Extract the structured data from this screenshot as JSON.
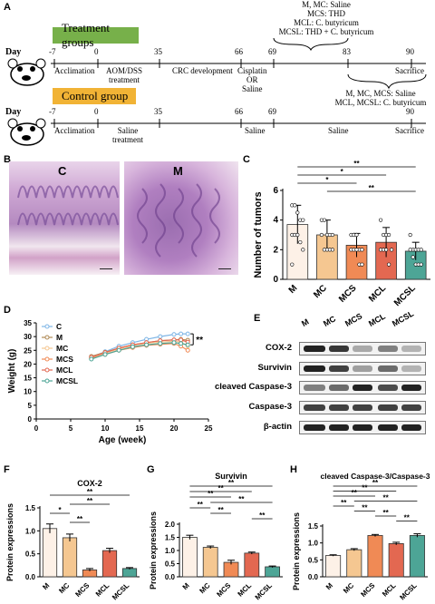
{
  "panelA": {
    "label": "A",
    "treatment_label": "Treatment groups",
    "control_label": "Control group",
    "day_label": "Day",
    "days": [
      "-7",
      "0",
      "35",
      "66",
      "69",
      "83",
      "90"
    ],
    "control_days": [
      "-7",
      "0",
      "35",
      "66",
      "69",
      "90"
    ],
    "treat_phases": {
      "accl": "Acclimation",
      "aom": "AOM/DSS",
      "aom2": "treatment",
      "crc": "CRC development",
      "cis": "Cisplatin",
      "cis_or": "OR",
      "cis_saline": "Saline",
      "sac": "Sacrifice"
    },
    "ctrl_phases": {
      "accl": "Acclimation",
      "sal": "Saline",
      "sal2": "treatment",
      "s66": "Saline",
      "s83": "Saline",
      "sac": "Sacrifice"
    },
    "top_note": [
      "M, MC: Saline",
      "MCS: THD",
      "MCL: C. butyricum",
      "MCSL: THD + C. butyricum"
    ],
    "bottom_note": [
      "M, MC, MCS: Saline",
      "MCL, MCSL: C. butyricum"
    ],
    "treat_color": "#77b04a",
    "ctrl_color": "#f1b335"
  },
  "panelB": {
    "label": "B",
    "img_c": "C",
    "img_m": "M"
  },
  "panelC": {
    "label": "C"
  },
  "panelD": {
    "label": "D"
  },
  "panelE": {
    "label": "E",
    "lanes": [
      "M",
      "MC",
      "MCS",
      "MCL",
      "MCSL"
    ],
    "rows": [
      "COX-2",
      "Survivin",
      "cleaved Caspase-3",
      "Caspase-3",
      "β-actin"
    ]
  },
  "panelF": {
    "label": "F"
  },
  "panelG": {
    "label": "G"
  },
  "panelH": {
    "label": "H"
  },
  "colors": {
    "M": "#fdf1e7",
    "MC": "#f5c791",
    "MCS": "#f08a55",
    "MCL": "#e36851",
    "MCSL": "#4da596"
  },
  "chart_data": [
    {
      "id": "C",
      "type": "bar",
      "title": "",
      "ylabel": "Number of tumors",
      "xlabel": "",
      "categories": [
        "M",
        "MC",
        "MCS",
        "MCL",
        "MCSL"
      ],
      "values": [
        3.7,
        3.0,
        2.3,
        2.5,
        1.9
      ],
      "errors": [
        1.3,
        1.0,
        0.8,
        1.0,
        0.6
      ],
      "points": [
        [
          5,
          5,
          4.5,
          4,
          4,
          3,
          3,
          3,
          2.5,
          2,
          1
        ],
        [
          4,
          4,
          3,
          3,
          3,
          3,
          2,
          2,
          2,
          2
        ],
        [
          3,
          3,
          3,
          2,
          2,
          2,
          2,
          2,
          1,
          1
        ],
        [
          4,
          3,
          3,
          3,
          2,
          2,
          2,
          2,
          1
        ],
        [
          3,
          2,
          2,
          2,
          2,
          2,
          1.5,
          1,
          1,
          1
        ]
      ],
      "ylim": [
        0,
        6
      ],
      "yticks": [
        "0",
        "2",
        "4",
        "6"
      ],
      "sig": [
        {
          "from": 0,
          "to": 4,
          "label": "**"
        },
        {
          "from": 0,
          "to": 3,
          "label": "*"
        },
        {
          "from": 0,
          "to": 2,
          "label": "*"
        },
        {
          "from": 1,
          "to": 4,
          "label": "**"
        }
      ]
    },
    {
      "id": "D",
      "type": "line",
      "title": "",
      "xlabel": "Age (week)",
      "ylabel": "Weight (g)",
      "x": [
        8,
        10,
        12,
        14,
        16,
        18,
        20,
        21,
        22
      ],
      "xlim": [
        0,
        25
      ],
      "ylim": [
        0,
        35
      ],
      "xticks": [
        "0",
        "5",
        "10",
        "15",
        "20",
        "25"
      ],
      "yticks": [
        "0",
        "5",
        "10",
        "15",
        "20",
        "25",
        "30",
        "35"
      ],
      "series": [
        {
          "name": "C",
          "color": "#7fb6e6",
          "values": [
            22.5,
            24.5,
            26.5,
            27.8,
            29.0,
            30.0,
            30.8,
            31.0,
            31.0
          ]
        },
        {
          "name": "M",
          "color": "#b08a55",
          "values": [
            22.8,
            24.3,
            25.8,
            27.0,
            27.8,
            28.5,
            28.8,
            29.0,
            28.7
          ]
        },
        {
          "name": "MC",
          "color": "#f5c791",
          "values": [
            22.3,
            24.0,
            25.5,
            26.8,
            27.5,
            28.0,
            28.3,
            28.0,
            26.5
          ]
        },
        {
          "name": "MCS",
          "color": "#f08a55",
          "values": [
            22.0,
            23.5,
            25.0,
            26.0,
            26.8,
            27.2,
            27.5,
            26.5,
            25.0
          ]
        },
        {
          "name": "MCL",
          "color": "#e36851",
          "values": [
            22.5,
            24.2,
            25.8,
            27.0,
            27.8,
            28.5,
            28.8,
            28.8,
            28.0
          ]
        },
        {
          "name": "MCSL",
          "color": "#4da596",
          "values": [
            21.8,
            23.5,
            25.0,
            26.3,
            27.0,
            27.5,
            27.8,
            27.5,
            27.0
          ]
        }
      ],
      "sig": "**"
    },
    {
      "id": "F",
      "type": "bar",
      "title": "COX-2",
      "ylabel": "Protein expressions",
      "categories": [
        "M",
        "MC",
        "MCS",
        "MCL",
        "MCSL"
      ],
      "values": [
        1.05,
        0.85,
        0.15,
        0.57,
        0.18
      ],
      "errors": [
        0.1,
        0.08,
        0.03,
        0.05,
        0.02
      ],
      "ylim": [
        0,
        1.5
      ],
      "yticks": [
        "0.0",
        "0.5",
        "1.0",
        "1.5"
      ],
      "sig": [
        {
          "from": 0,
          "to": 4,
          "label": "**"
        },
        {
          "from": 1,
          "to": 3,
          "label": "**"
        },
        {
          "from": 0,
          "to": 1,
          "label": "*"
        },
        {
          "from": 1,
          "to": 2,
          "label": "**"
        }
      ]
    },
    {
      "id": "G",
      "type": "bar",
      "title": "Survivin",
      "ylabel": "Protein expressions",
      "categories": [
        "M",
        "MC",
        "MCS",
        "MCL",
        "MCSL"
      ],
      "values": [
        1.5,
        1.12,
        0.55,
        0.9,
        0.38
      ],
      "errors": [
        0.08,
        0.05,
        0.08,
        0.04,
        0.03
      ],
      "ylim": [
        0,
        2.0
      ],
      "yticks": [
        "0.0",
        "0.5",
        "1.0",
        "1.5",
        "2.0"
      ],
      "sig": [
        {
          "from": 0,
          "to": 4,
          "label": "**"
        },
        {
          "from": 0,
          "to": 3,
          "label": "**"
        },
        {
          "from": 0,
          "to": 2,
          "label": "**"
        },
        {
          "from": 1,
          "to": 4,
          "label": "**"
        },
        {
          "from": 0,
          "to": 1,
          "label": "**"
        },
        {
          "from": 1,
          "to": 2,
          "label": "**"
        },
        {
          "from": 3,
          "to": 4,
          "label": "**"
        }
      ]
    },
    {
      "id": "H",
      "type": "bar",
      "title": "cleaved Caspase-3/Caspase-3",
      "ylabel": "Protein expressions",
      "categories": [
        "M",
        "MC",
        "MCS",
        "MCL",
        "MCSL"
      ],
      "values": [
        0.63,
        0.8,
        1.22,
        0.98,
        1.22
      ],
      "errors": [
        0.02,
        0.03,
        0.03,
        0.04,
        0.05
      ],
      "ylim": [
        0,
        1.5
      ],
      "yticks": [
        "0.0",
        "0.5",
        "1.0",
        "1.5"
      ],
      "sig": [
        {
          "from": 0,
          "to": 4,
          "label": "**"
        },
        {
          "from": 0,
          "to": 3,
          "label": "**"
        },
        {
          "from": 0,
          "to": 2,
          "label": "**"
        },
        {
          "from": 1,
          "to": 4,
          "label": "**"
        },
        {
          "from": 0,
          "to": 1,
          "label": "**"
        },
        {
          "from": 1,
          "to": 2,
          "label": "**"
        },
        {
          "from": 2,
          "to": 3,
          "label": "**"
        },
        {
          "from": 3,
          "to": 4,
          "label": "**"
        }
      ]
    }
  ]
}
